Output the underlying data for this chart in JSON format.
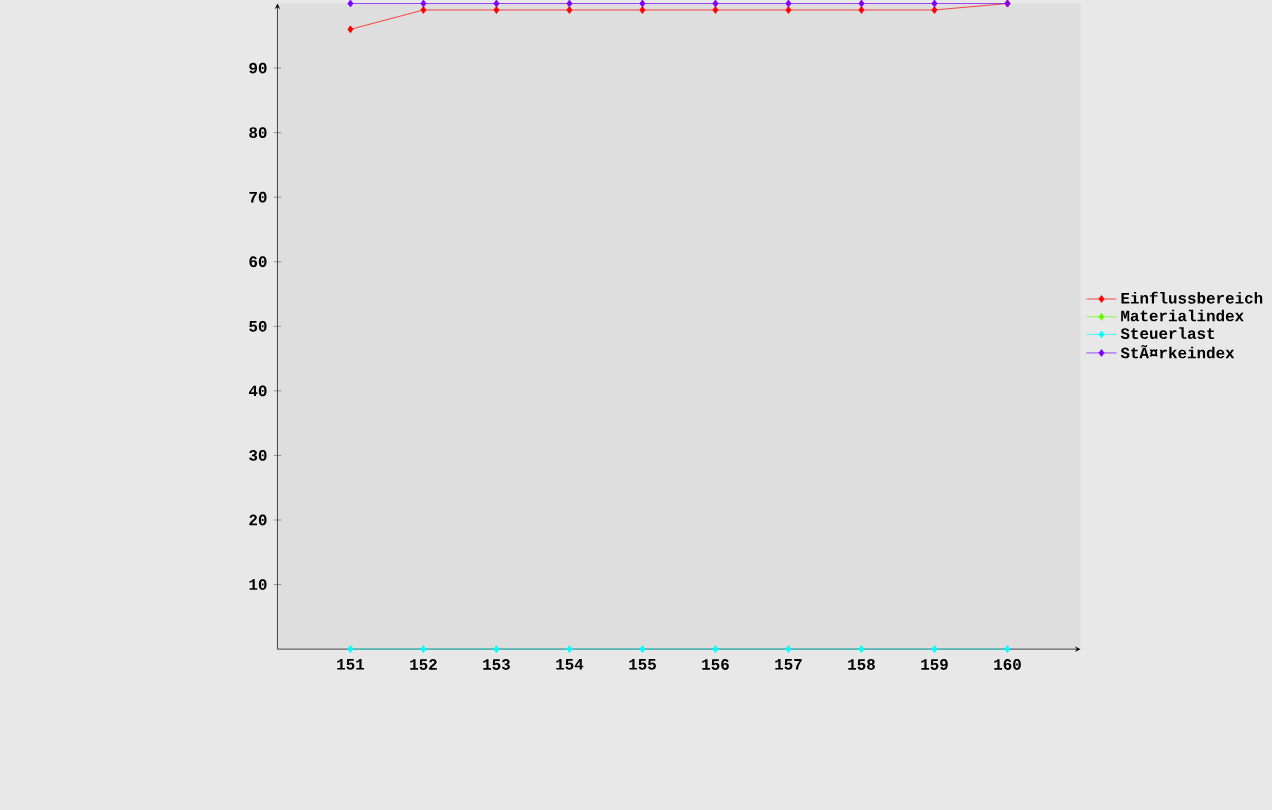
{
  "chart_data": {
    "type": "line",
    "categories": [
      "151",
      "152",
      "153",
      "154",
      "155",
      "156",
      "157",
      "158",
      "159",
      "160"
    ],
    "ylim": [
      0,
      100
    ],
    "yticks": [
      10,
      20,
      30,
      40,
      50,
      60,
      70,
      80,
      90
    ],
    "series": [
      {
        "name": "Einflussbereich",
        "color": "#ff0000",
        "values": [
          96,
          99,
          99,
          99,
          99,
          99,
          99,
          99,
          99,
          100
        ]
      },
      {
        "name": "Materialindex",
        "color": "#66ff00",
        "values": [
          null,
          null,
          null,
          null,
          null,
          null,
          null,
          null,
          null,
          null
        ]
      },
      {
        "name": "Steuerlast",
        "color": "#00ffff",
        "values": [
          0,
          0,
          0,
          0,
          0,
          0,
          0,
          0,
          0,
          0
        ]
      },
      {
        "name": "StÃ¤rkeindex",
        "color": "#7f00ff",
        "values": [
          100,
          100,
          100,
          100,
          100,
          100,
          100,
          100,
          100,
          100
        ]
      }
    ],
    "grid": false,
    "legend": "right",
    "marker": "diamond",
    "line_style": "solid"
  }
}
